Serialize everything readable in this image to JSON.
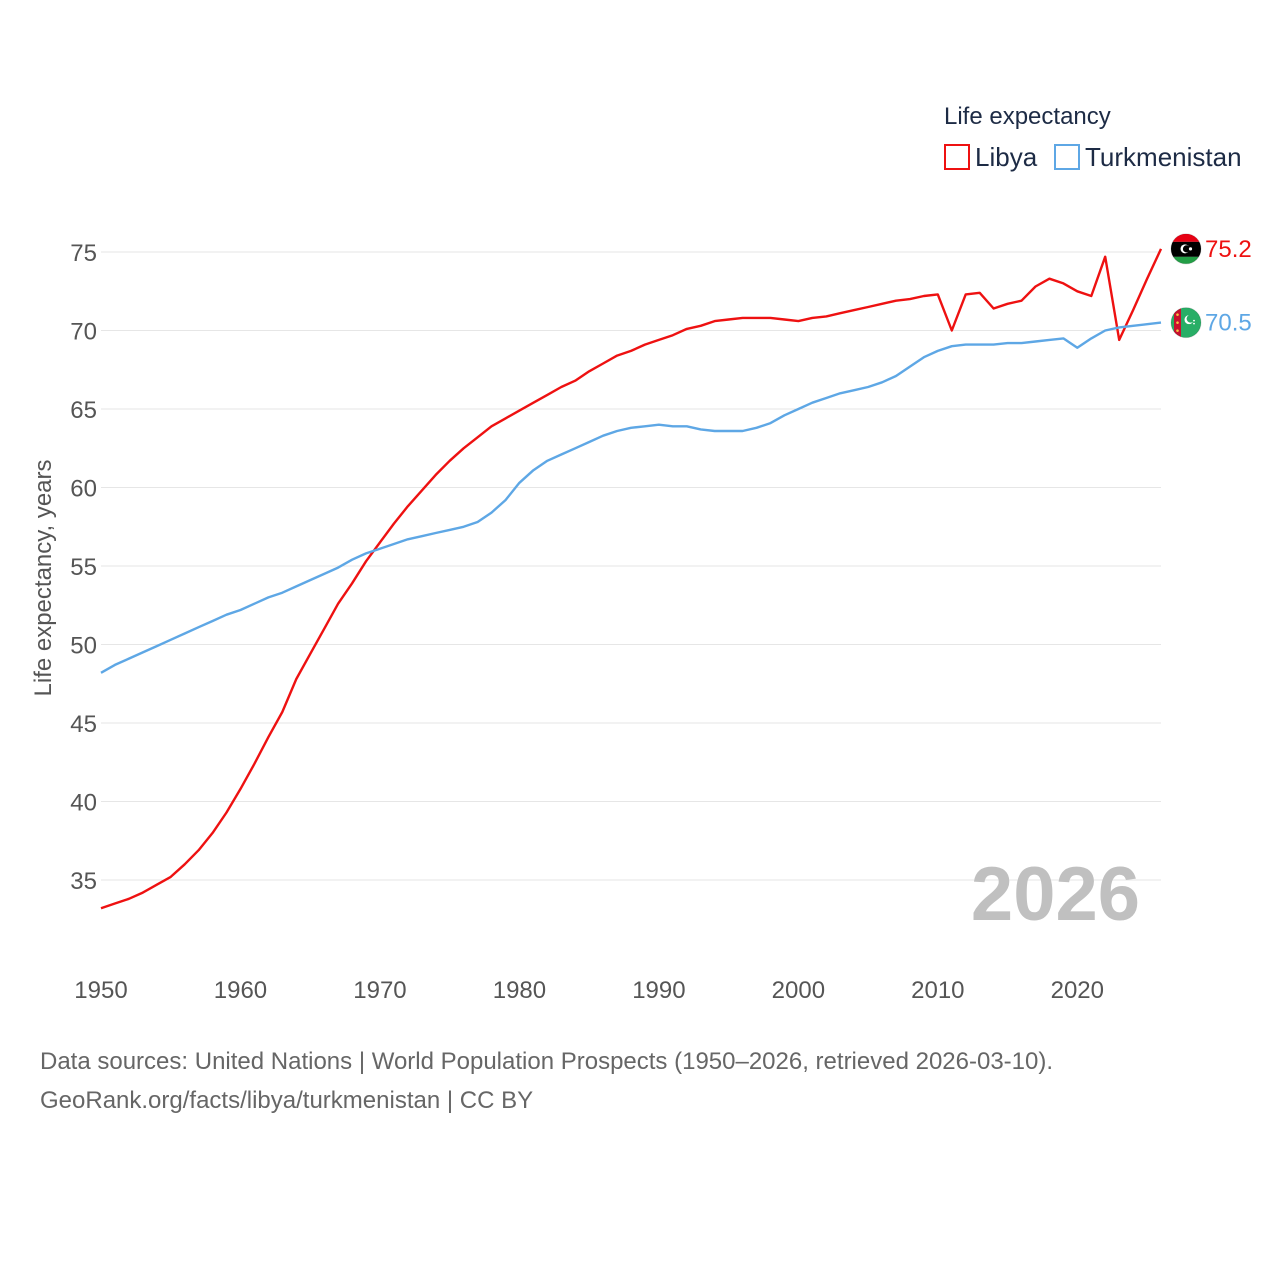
{
  "chart_data": {
    "type": "line",
    "ylabel": "Life expectancy, years",
    "xlabel": "",
    "xlim": [
      1950,
      2026
    ],
    "ylim": [
      31.5,
      77.5
    ],
    "x_ticks": [
      1950,
      1960,
      1970,
      1980,
      1990,
      2000,
      2010,
      2020
    ],
    "y_ticks": [
      35,
      40,
      45,
      50,
      55,
      60,
      65,
      70,
      75
    ],
    "grid": true,
    "legend": {
      "title": "Life expectancy",
      "position": "top-right",
      "entries": [
        "Libya",
        "Turkmenistan"
      ]
    },
    "year_stamp": "2026",
    "series": [
      {
        "name": "Libya",
        "color": "#ee1111",
        "end_label": "75.2",
        "flag_icon": "libya-flag-icon",
        "points": [
          [
            1950,
            33.2
          ],
          [
            1951,
            33.5
          ],
          [
            1952,
            33.8
          ],
          [
            1953,
            34.2
          ],
          [
            1954,
            34.7
          ],
          [
            1955,
            35.2
          ],
          [
            1956,
            36.0
          ],
          [
            1957,
            36.9
          ],
          [
            1958,
            38.0
          ],
          [
            1959,
            39.3
          ],
          [
            1960,
            40.8
          ],
          [
            1961,
            42.4
          ],
          [
            1962,
            44.1
          ],
          [
            1963,
            45.7
          ],
          [
            1964,
            47.8
          ],
          [
            1965,
            49.4
          ],
          [
            1966,
            51.0
          ],
          [
            1967,
            52.6
          ],
          [
            1968,
            53.9
          ],
          [
            1969,
            55.3
          ],
          [
            1970,
            56.5
          ],
          [
            1971,
            57.7
          ],
          [
            1972,
            58.8
          ],
          [
            1973,
            59.8
          ],
          [
            1974,
            60.8
          ],
          [
            1975,
            61.7
          ],
          [
            1976,
            62.5
          ],
          [
            1977,
            63.2
          ],
          [
            1978,
            63.9
          ],
          [
            1979,
            64.4
          ],
          [
            1980,
            64.9
          ],
          [
            1981,
            65.4
          ],
          [
            1982,
            65.9
          ],
          [
            1983,
            66.4
          ],
          [
            1984,
            66.8
          ],
          [
            1985,
            67.4
          ],
          [
            1986,
            67.9
          ],
          [
            1987,
            68.4
          ],
          [
            1988,
            68.7
          ],
          [
            1989,
            69.1
          ],
          [
            1990,
            69.4
          ],
          [
            1991,
            69.7
          ],
          [
            1992,
            70.1
          ],
          [
            1993,
            70.3
          ],
          [
            1994,
            70.6
          ],
          [
            1995,
            70.7
          ],
          [
            1996,
            70.8
          ],
          [
            1997,
            70.8
          ],
          [
            1998,
            70.8
          ],
          [
            1999,
            70.7
          ],
          [
            2000,
            70.6
          ],
          [
            2001,
            70.8
          ],
          [
            2002,
            70.9
          ],
          [
            2003,
            71.1
          ],
          [
            2004,
            71.3
          ],
          [
            2005,
            71.5
          ],
          [
            2006,
            71.7
          ],
          [
            2007,
            71.9
          ],
          [
            2008,
            72.0
          ],
          [
            2009,
            72.2
          ],
          [
            2010,
            72.3
          ],
          [
            2011,
            70.0
          ],
          [
            2012,
            72.3
          ],
          [
            2013,
            72.4
          ],
          [
            2014,
            71.4
          ],
          [
            2015,
            71.7
          ],
          [
            2016,
            71.9
          ],
          [
            2017,
            72.8
          ],
          [
            2018,
            73.3
          ],
          [
            2019,
            73.0
          ],
          [
            2020,
            72.5
          ],
          [
            2021,
            72.2
          ],
          [
            2022,
            74.7
          ],
          [
            2023,
            69.4
          ],
          [
            2024,
            71.3
          ],
          [
            2025,
            73.3
          ],
          [
            2026,
            75.2
          ]
        ]
      },
      {
        "name": "Turkmenistan",
        "color": "#5ea7e5",
        "end_label": "70.5",
        "flag_icon": "turkmenistan-flag-icon",
        "points": [
          [
            1950,
            48.2
          ],
          [
            1951,
            48.7
          ],
          [
            1952,
            49.1
          ],
          [
            1953,
            49.5
          ],
          [
            1954,
            49.9
          ],
          [
            1955,
            50.3
          ],
          [
            1956,
            50.7
          ],
          [
            1957,
            51.1
          ],
          [
            1958,
            51.5
          ],
          [
            1959,
            51.9
          ],
          [
            1960,
            52.2
          ],
          [
            1961,
            52.6
          ],
          [
            1962,
            53.0
          ],
          [
            1963,
            53.3
          ],
          [
            1964,
            53.7
          ],
          [
            1965,
            54.1
          ],
          [
            1966,
            54.5
          ],
          [
            1967,
            54.9
          ],
          [
            1968,
            55.4
          ],
          [
            1969,
            55.8
          ],
          [
            1970,
            56.1
          ],
          [
            1971,
            56.4
          ],
          [
            1972,
            56.7
          ],
          [
            1973,
            56.9
          ],
          [
            1974,
            57.1
          ],
          [
            1975,
            57.3
          ],
          [
            1976,
            57.5
          ],
          [
            1977,
            57.8
          ],
          [
            1978,
            58.4
          ],
          [
            1979,
            59.2
          ],
          [
            1980,
            60.3
          ],
          [
            1981,
            61.1
          ],
          [
            1982,
            61.7
          ],
          [
            1983,
            62.1
          ],
          [
            1984,
            62.5
          ],
          [
            1985,
            62.9
          ],
          [
            1986,
            63.3
          ],
          [
            1987,
            63.6
          ],
          [
            1988,
            63.8
          ],
          [
            1989,
            63.9
          ],
          [
            1990,
            64.0
          ],
          [
            1991,
            63.9
          ],
          [
            1992,
            63.9
          ],
          [
            1993,
            63.7
          ],
          [
            1994,
            63.6
          ],
          [
            1995,
            63.6
          ],
          [
            1996,
            63.6
          ],
          [
            1997,
            63.8
          ],
          [
            1998,
            64.1
          ],
          [
            1999,
            64.6
          ],
          [
            2000,
            65.0
          ],
          [
            2001,
            65.4
          ],
          [
            2002,
            65.7
          ],
          [
            2003,
            66.0
          ],
          [
            2004,
            66.2
          ],
          [
            2005,
            66.4
          ],
          [
            2006,
            66.7
          ],
          [
            2007,
            67.1
          ],
          [
            2008,
            67.7
          ],
          [
            2009,
            68.3
          ],
          [
            2010,
            68.7
          ],
          [
            2011,
            69.0
          ],
          [
            2012,
            69.1
          ],
          [
            2013,
            69.1
          ],
          [
            2014,
            69.1
          ],
          [
            2015,
            69.2
          ],
          [
            2016,
            69.2
          ],
          [
            2017,
            69.3
          ],
          [
            2018,
            69.4
          ],
          [
            2019,
            69.5
          ],
          [
            2020,
            68.9
          ],
          [
            2021,
            69.5
          ],
          [
            2022,
            70.0
          ],
          [
            2023,
            70.2
          ],
          [
            2024,
            70.3
          ],
          [
            2025,
            70.4
          ],
          [
            2026,
            70.5
          ]
        ]
      }
    ]
  },
  "footer": {
    "line1": "Data sources: United Nations | World Population Prospects (1950–2026, retrieved 2026-03-10).",
    "line2": "GeoRank.org/facts/libya/turkmenistan | CC BY"
  }
}
